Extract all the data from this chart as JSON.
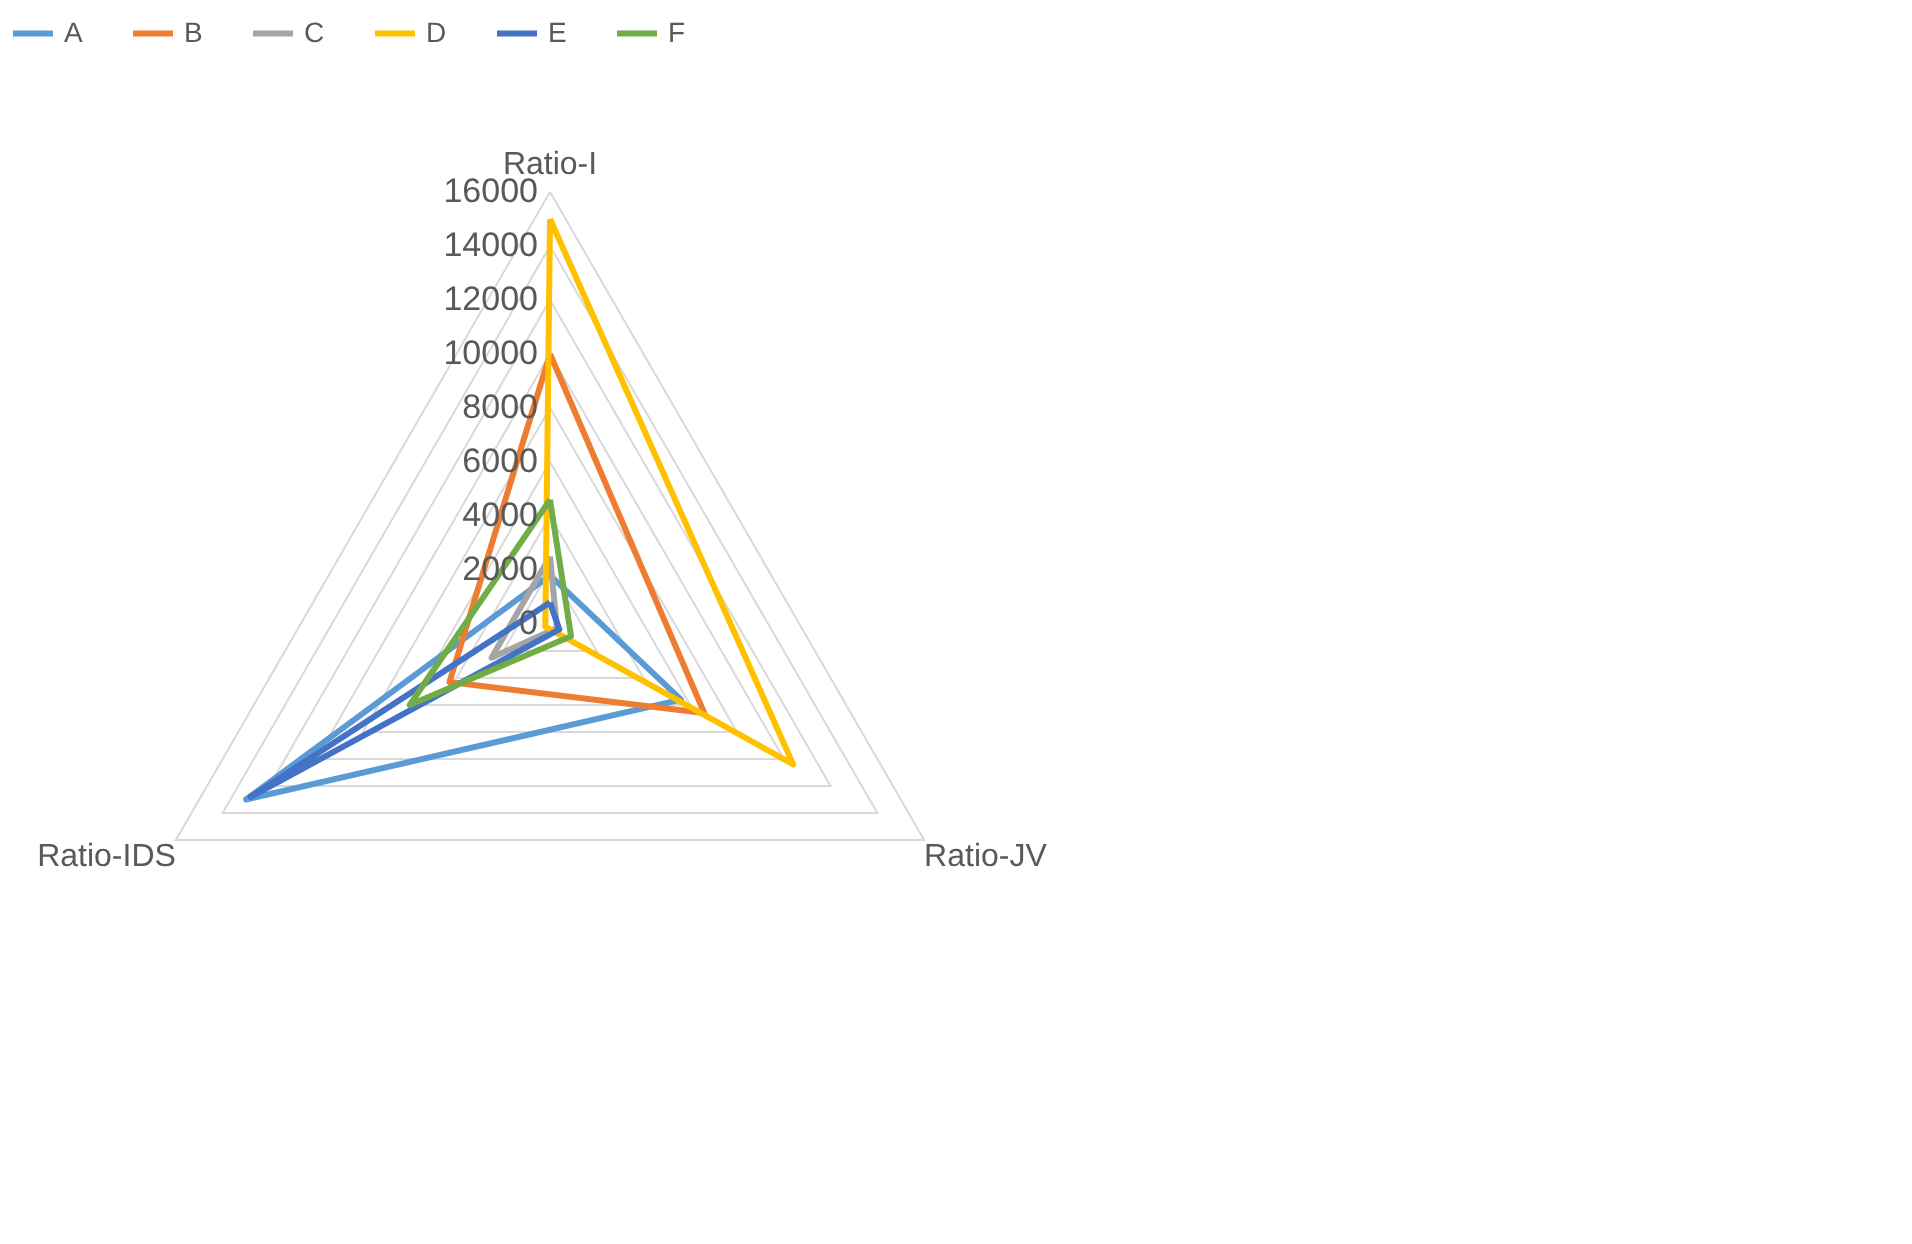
{
  "chart_data": {
    "type": "radar",
    "categories": [
      "Ratio-I",
      "Ratio-JV",
      "Ratio-IDS"
    ],
    "series": [
      {
        "name": "A",
        "color": "#5b9bd5",
        "values": [
          1800,
          5600,
          13000
        ]
      },
      {
        "name": "B",
        "color": "#ed7d31",
        "values": [
          10000,
          6600,
          4300
        ]
      },
      {
        "name": "C",
        "color": "#a5a5a5",
        "values": [
          2500,
          300,
          2500
        ]
      },
      {
        "name": "D",
        "color": "#ffc000",
        "values": [
          15000,
          10400,
          200
        ]
      },
      {
        "name": "E",
        "color": "#4472c4",
        "values": [
          800,
          400,
          12800
        ]
      },
      {
        "name": "F",
        "color": "#70ad47",
        "values": [
          4600,
          900,
          6000
        ]
      }
    ],
    "ylim": [
      0,
      16000
    ],
    "yticks": [
      0,
      2000,
      4000,
      6000,
      8000,
      10000,
      12000,
      14000,
      16000
    ],
    "grid": true,
    "legend": "top"
  }
}
